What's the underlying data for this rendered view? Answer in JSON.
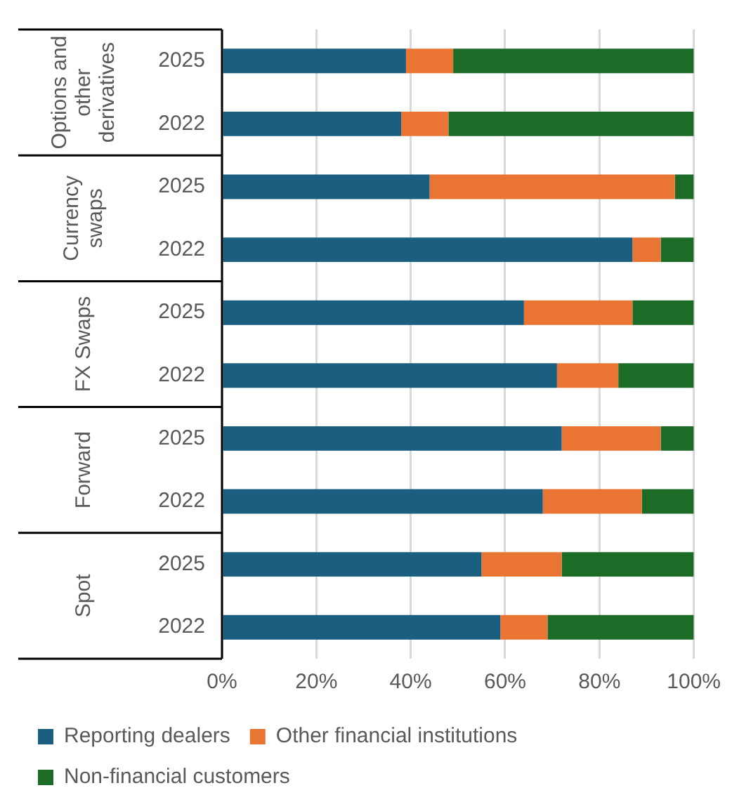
{
  "chart_data": {
    "type": "bar",
    "orientation": "horizontal",
    "stacked": true,
    "categories": [
      "2025",
      "2022",
      "2025",
      "2022",
      "2025",
      "2022",
      "2025",
      "2022",
      "2025",
      "2022"
    ],
    "annotations": [
      "Options and other derivatives",
      "Currency swaps",
      "FX Swaps",
      "Forward",
      "Spot"
    ],
    "series": [
      {
        "name": "Reporting dealers",
        "color": "#1a5e80",
        "values": [
          39,
          38,
          44,
          87,
          64,
          71,
          72,
          68,
          55,
          59
        ]
      },
      {
        "name": "Other financial institutions",
        "color": "#e97434",
        "values": [
          10,
          10,
          52,
          6,
          23,
          13,
          21,
          21,
          17,
          10
        ]
      },
      {
        "name": "Non-financial customers",
        "color": "#1c6b27",
        "values": [
          51,
          52,
          4,
          7,
          13,
          16,
          7,
          11,
          28,
          31
        ]
      }
    ],
    "xlim": [
      0,
      100
    ],
    "xticks": [
      {
        "value": 0,
        "label": "0%"
      },
      {
        "value": 20,
        "label": "20%"
      },
      {
        "value": 40,
        "label": "40%"
      },
      {
        "value": 60,
        "label": "60%"
      },
      {
        "value": 80,
        "label": "80%"
      },
      {
        "value": 100,
        "label": "100%"
      }
    ],
    "grid": "x",
    "legend": "bottom"
  }
}
